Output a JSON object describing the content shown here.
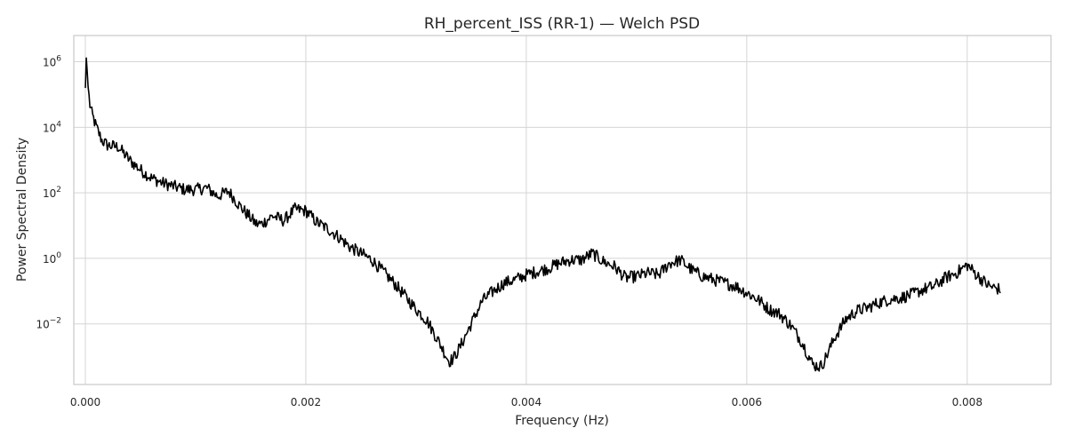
{
  "chart_data": {
    "type": "line",
    "title": "RH_percent_ISS (RR-1) — Welch PSD",
    "xlabel": "Frequency (Hz)",
    "ylabel": "Power Spectral Density",
    "xlim": [
      -0.000105,
      0.00876
    ],
    "ylim_log10": [
      -3.85,
      6.8
    ],
    "y_scale": "log",
    "grid": true,
    "legend": "none",
    "line_color": "#000000",
    "x_ticks": [
      {
        "value": 0,
        "label": "0.000"
      },
      {
        "value": 0.002,
        "label": "0.002"
      },
      {
        "value": 0.004,
        "label": "0.004"
      },
      {
        "value": 0.006,
        "label": "0.006"
      },
      {
        "value": 0.008,
        "label": "0.008"
      }
    ],
    "y_ticks": [
      {
        "exp": -2,
        "base": "10",
        "sup": "−2"
      },
      {
        "exp": 0,
        "base": "10",
        "sup": "0"
      },
      {
        "exp": 2,
        "base": "10",
        "sup": "2"
      },
      {
        "exp": 4,
        "base": "10",
        "sup": "4"
      },
      {
        "exp": 6,
        "base": "10",
        "sup": "6"
      }
    ],
    "series": [
      {
        "x": [
          0,
          1e-05,
          2e-05,
          4e-05,
          6e-05,
          0.0001,
          0.00015,
          0.0002,
          0.0003,
          0.0004,
          0.0005,
          0.0006,
          0.0007,
          0.0008,
          0.0009,
          0.001,
          0.0011,
          0.0012,
          0.0013,
          0.0014,
          0.00155,
          0.0016,
          0.0017,
          0.0018,
          0.0019,
          0.002,
          0.0021,
          0.0022,
          0.0023,
          0.0024,
          0.0025,
          0.0026,
          0.0027,
          0.0028,
          0.0029,
          0.003,
          0.0031,
          0.0032,
          0.0033,
          0.00334,
          0.0034,
          0.0035,
          0.0036,
          0.0037,
          0.0038,
          0.0039,
          0.004,
          0.0041,
          0.0042,
          0.0043,
          0.0044,
          0.0045,
          0.0046,
          0.0047,
          0.0048,
          0.0049,
          0.005,
          0.0051,
          0.0052,
          0.0053,
          0.0054,
          0.0055,
          0.0056,
          0.0057,
          0.0058,
          0.0059,
          0.006,
          0.0061,
          0.0062,
          0.0063,
          0.0064,
          0.0065,
          0.0066,
          0.00667,
          0.0067,
          0.0068,
          0.0069,
          0.007,
          0.0071,
          0.0072,
          0.0073,
          0.0074,
          0.0075,
          0.0076,
          0.0077,
          0.0078,
          0.0079,
          0.008,
          0.0081,
          0.0082,
          0.0083
        ],
        "log10_y": [
          5.2,
          6.3,
          5.4,
          4.7,
          4.4,
          4.0,
          3.6,
          3.45,
          3.4,
          3.0,
          2.7,
          2.45,
          2.3,
          2.2,
          2.1,
          2.1,
          2.15,
          1.9,
          2.05,
          1.6,
          1.05,
          1.05,
          1.3,
          1.15,
          1.5,
          1.45,
          1.1,
          0.9,
          0.65,
          0.35,
          0.15,
          -0.05,
          -0.4,
          -0.75,
          -1.15,
          -1.55,
          -1.9,
          -2.5,
          -3.15,
          -3.05,
          -2.7,
          -2.0,
          -1.3,
          -1.0,
          -0.75,
          -0.65,
          -0.5,
          -0.4,
          -0.3,
          -0.15,
          -0.05,
          -0.05,
          0.15,
          -0.1,
          -0.25,
          -0.6,
          -0.55,
          -0.45,
          -0.5,
          -0.15,
          -0.05,
          -0.35,
          -0.55,
          -0.65,
          -0.75,
          -0.85,
          -1.05,
          -1.25,
          -1.55,
          -1.7,
          -2.05,
          -2.55,
          -3.25,
          -3.3,
          -3.15,
          -2.4,
          -1.85,
          -1.6,
          -1.5,
          -1.35,
          -1.25,
          -1.2,
          -1.1,
          -0.95,
          -0.85,
          -0.6,
          -0.45,
          -0.2,
          -0.55,
          -0.85,
          -0.95
        ]
      }
    ]
  }
}
